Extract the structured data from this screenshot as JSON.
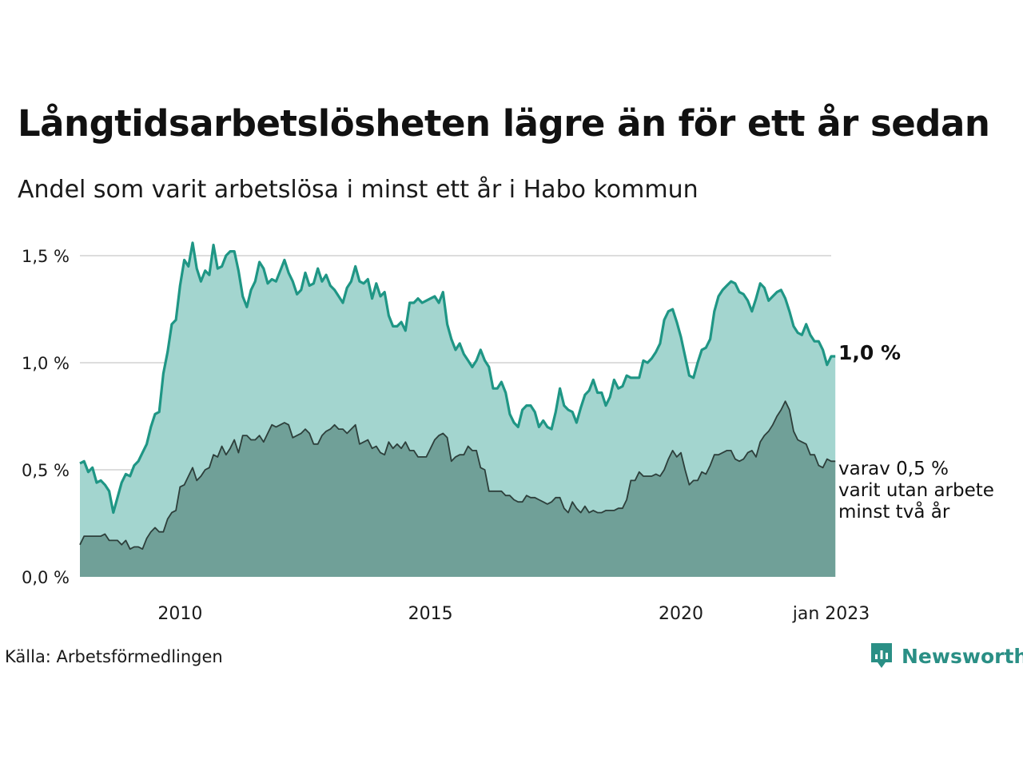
{
  "title": "Långtidsarbetslösheten lägre än för ett år sedan",
  "subtitle": "Andel som varit arbetslösa i minst ett år i Habo kommun",
  "source": "Källa: Arbetsförmedlingen",
  "brand": "Newsworthy",
  "colors": {
    "main_line": "#1f9685",
    "main_fill": "#a3d5cf",
    "sub_line": "#2d3f3b",
    "sub_fill": "#70a098",
    "grid": "#dddddd",
    "brand": "#2a8f85"
  },
  "chart_data": {
    "type": "area",
    "x_start": "2008-01",
    "x_end": "2023-01",
    "x_step": "month",
    "ylim": [
      0,
      1.6
    ],
    "y_ticks": [
      0,
      0.5,
      1.0,
      1.5
    ],
    "y_tick_labels": [
      "0,0 %",
      "0,5 %",
      "1,0 %",
      "1,5 %"
    ],
    "x_ticks": [
      "2010-01",
      "2015-01",
      "2020-01",
      "2023-01"
    ],
    "x_tick_labels": [
      "2010",
      "2015",
      "2020",
      "jan 2023"
    ],
    "grid": true,
    "series": [
      {
        "label": "1,0 %",
        "end_value": 1.03,
        "values": [
          0.53,
          0.54,
          0.49,
          0.51,
          0.44,
          0.45,
          0.43,
          0.4,
          0.3,
          0.37,
          0.44,
          0.48,
          0.47,
          0.52,
          0.54,
          0.58,
          0.62,
          0.7,
          0.76,
          0.77,
          0.95,
          1.05,
          1.18,
          1.2,
          1.36,
          1.48,
          1.45,
          1.56,
          1.44,
          1.38,
          1.43,
          1.41,
          1.55,
          1.44,
          1.45,
          1.5,
          1.52,
          1.52,
          1.43,
          1.31,
          1.26,
          1.34,
          1.38,
          1.47,
          1.44,
          1.37,
          1.39,
          1.38,
          1.43,
          1.48,
          1.42,
          1.38,
          1.32,
          1.34,
          1.42,
          1.36,
          1.37,
          1.44,
          1.38,
          1.41,
          1.36,
          1.34,
          1.31,
          1.28,
          1.35,
          1.38,
          1.45,
          1.38,
          1.37,
          1.39,
          1.3,
          1.37,
          1.31,
          1.33,
          1.22,
          1.17,
          1.17,
          1.19,
          1.15,
          1.28,
          1.28,
          1.3,
          1.28,
          1.29,
          1.3,
          1.31,
          1.28,
          1.33,
          1.18,
          1.11,
          1.06,
          1.09,
          1.04,
          1.01,
          0.98,
          1.01,
          1.06,
          1.01,
          0.98,
          0.88,
          0.88,
          0.91,
          0.86,
          0.76,
          0.72,
          0.7,
          0.78,
          0.8,
          0.8,
          0.77,
          0.7,
          0.73,
          0.7,
          0.69,
          0.77,
          0.88,
          0.8,
          0.78,
          0.77,
          0.72,
          0.79,
          0.85,
          0.87,
          0.92,
          0.86,
          0.86,
          0.8,
          0.84,
          0.92,
          0.88,
          0.89,
          0.94,
          0.93,
          0.93,
          0.93,
          1.01,
          1.0,
          1.02,
          1.05,
          1.09,
          1.2,
          1.24,
          1.25,
          1.19,
          1.12,
          1.03,
          0.94,
          0.93,
          1.0,
          1.06,
          1.07,
          1.11,
          1.24,
          1.31,
          1.34,
          1.36,
          1.38,
          1.37,
          1.33,
          1.32,
          1.29,
          1.24,
          1.3,
          1.37,
          1.35,
          1.29,
          1.31,
          1.33,
          1.34,
          1.3,
          1.24,
          1.17,
          1.14,
          1.13,
          1.18,
          1.13,
          1.1,
          1.1,
          1.06,
          0.99,
          1.03,
          1.03
        ]
      },
      {
        "label": "varav 0,5 % varit utan arbete minst två år",
        "label_lines": [
          "varav 0,5 %",
          "varit utan arbete",
          "minst två år"
        ],
        "end_value": 0.54,
        "values": [
          0.15,
          0.19,
          0.19,
          0.19,
          0.19,
          0.19,
          0.2,
          0.17,
          0.17,
          0.17,
          0.15,
          0.17,
          0.13,
          0.14,
          0.14,
          0.13,
          0.18,
          0.21,
          0.23,
          0.21,
          0.21,
          0.27,
          0.3,
          0.31,
          0.42,
          0.43,
          0.47,
          0.51,
          0.45,
          0.47,
          0.5,
          0.51,
          0.57,
          0.56,
          0.61,
          0.57,
          0.6,
          0.64,
          0.58,
          0.66,
          0.66,
          0.64,
          0.64,
          0.66,
          0.63,
          0.67,
          0.71,
          0.7,
          0.71,
          0.72,
          0.71,
          0.65,
          0.66,
          0.67,
          0.69,
          0.67,
          0.62,
          0.62,
          0.66,
          0.68,
          0.69,
          0.71,
          0.69,
          0.69,
          0.67,
          0.69,
          0.71,
          0.62,
          0.63,
          0.64,
          0.6,
          0.61,
          0.58,
          0.57,
          0.63,
          0.6,
          0.62,
          0.6,
          0.63,
          0.59,
          0.59,
          0.56,
          0.56,
          0.56,
          0.6,
          0.64,
          0.66,
          0.67,
          0.65,
          0.54,
          0.56,
          0.57,
          0.57,
          0.61,
          0.59,
          0.59,
          0.51,
          0.5,
          0.4,
          0.4,
          0.4,
          0.4,
          0.38,
          0.38,
          0.36,
          0.35,
          0.35,
          0.38,
          0.37,
          0.37,
          0.36,
          0.35,
          0.34,
          0.35,
          0.37,
          0.37,
          0.32,
          0.3,
          0.35,
          0.32,
          0.3,
          0.33,
          0.3,
          0.31,
          0.3,
          0.3,
          0.31,
          0.31,
          0.31,
          0.32,
          0.32,
          0.36,
          0.45,
          0.45,
          0.49,
          0.47,
          0.47,
          0.47,
          0.48,
          0.47,
          0.5,
          0.55,
          0.59,
          0.56,
          0.58,
          0.5,
          0.43,
          0.45,
          0.45,
          0.49,
          0.48,
          0.52,
          0.57,
          0.57,
          0.58,
          0.59,
          0.59,
          0.55,
          0.54,
          0.55,
          0.58,
          0.59,
          0.56,
          0.63,
          0.66,
          0.68,
          0.71,
          0.75,
          0.78,
          0.82,
          0.78,
          0.68,
          0.64,
          0.63,
          0.62,
          0.57,
          0.57,
          0.52,
          0.51,
          0.55,
          0.54,
          0.54
        ]
      }
    ]
  }
}
